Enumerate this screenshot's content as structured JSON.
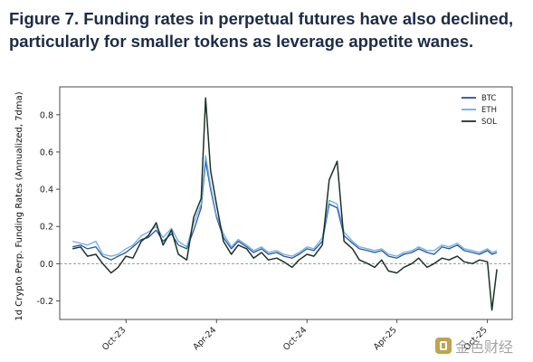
{
  "title": "Figure 7. Funding rates in perpetual futures have also declined, particularly for smaller tokens as leverage appetite wanes.",
  "watermark": {
    "text": "金色财经",
    "icon": "logo-icon"
  },
  "chart_data": {
    "type": "line",
    "title": "Figure 7. Funding rates in perpetual futures have also declined, particularly for smaller tokens as leverage appetite wanes.",
    "xlabel": "",
    "ylabel": "1d Crypto Perp. Funding Rates (Annualized, 7dma)",
    "xticks": [
      "Oct-23",
      "Apr-24",
      "Oct-24",
      "Apr-25",
      "Oct-25"
    ],
    "yticks": [
      -0.2,
      0.0,
      0.2,
      0.4,
      0.6,
      0.8
    ],
    "ylim": [
      -0.3,
      0.95
    ],
    "xlim": [
      "2023-05-20",
      "2025-11-20"
    ],
    "reference_line": {
      "y": 0.0,
      "style": "dashed"
    },
    "legend_position": "top-right",
    "grid": false,
    "series": [
      {
        "name": "BTC",
        "color": "#2a52a3",
        "x": [
          "2023-06-15",
          "2023-07-01",
          "2023-07-15",
          "2023-08-01",
          "2023-08-15",
          "2023-09-01",
          "2023-09-15",
          "2023-10-01",
          "2023-10-15",
          "2023-11-01",
          "2023-11-15",
          "2023-12-01",
          "2023-12-15",
          "2024-01-01",
          "2024-01-15",
          "2024-02-01",
          "2024-02-15",
          "2024-03-01",
          "2024-03-10",
          "2024-03-20",
          "2024-04-01",
          "2024-04-15",
          "2024-05-01",
          "2024-05-15",
          "2024-06-01",
          "2024-06-15",
          "2024-07-01",
          "2024-07-15",
          "2024-08-01",
          "2024-08-15",
          "2024-09-01",
          "2024-09-15",
          "2024-10-01",
          "2024-10-15",
          "2024-11-01",
          "2024-11-15",
          "2024-12-01",
          "2024-12-15",
          "2025-01-01",
          "2025-01-15",
          "2025-02-01",
          "2025-02-15",
          "2025-03-01",
          "2025-03-15",
          "2025-04-01",
          "2025-04-15",
          "2025-05-01",
          "2025-05-15",
          "2025-06-01",
          "2025-06-15",
          "2025-07-01",
          "2025-07-15",
          "2025-08-01",
          "2025-08-15",
          "2025-09-01",
          "2025-09-15",
          "2025-10-01",
          "2025-10-10",
          "2025-10-20"
        ],
        "values": [
          0.09,
          0.1,
          0.08,
          0.09,
          0.04,
          0.02,
          0.04,
          0.06,
          0.09,
          0.13,
          0.14,
          0.18,
          0.12,
          0.16,
          0.1,
          0.08,
          0.18,
          0.3,
          0.55,
          0.4,
          0.25,
          0.14,
          0.08,
          0.12,
          0.09,
          0.06,
          0.08,
          0.05,
          0.06,
          0.04,
          0.03,
          0.05,
          0.08,
          0.07,
          0.12,
          0.32,
          0.3,
          0.15,
          0.11,
          0.08,
          0.07,
          0.06,
          0.07,
          0.04,
          0.03,
          0.05,
          0.06,
          0.08,
          0.06,
          0.05,
          0.09,
          0.08,
          0.1,
          0.07,
          0.06,
          0.05,
          0.07,
          0.05,
          0.06
        ]
      },
      {
        "name": "ETH",
        "color": "#6aaee8",
        "x": [
          "2023-06-15",
          "2023-07-01",
          "2023-07-15",
          "2023-08-01",
          "2023-08-15",
          "2023-09-01",
          "2023-09-15",
          "2023-10-01",
          "2023-10-15",
          "2023-11-01",
          "2023-11-15",
          "2023-12-01",
          "2023-12-15",
          "2024-01-01",
          "2024-01-15",
          "2024-02-01",
          "2024-02-15",
          "2024-03-01",
          "2024-03-10",
          "2024-03-20",
          "2024-04-01",
          "2024-04-15",
          "2024-05-01",
          "2024-05-15",
          "2024-06-01",
          "2024-06-15",
          "2024-07-01",
          "2024-07-15",
          "2024-08-01",
          "2024-08-15",
          "2024-09-01",
          "2024-09-15",
          "2024-10-01",
          "2024-10-15",
          "2024-11-01",
          "2024-11-15",
          "2024-12-01",
          "2024-12-15",
          "2025-01-01",
          "2025-01-15",
          "2025-02-01",
          "2025-02-15",
          "2025-03-01",
          "2025-03-15",
          "2025-04-01",
          "2025-04-15",
          "2025-05-01",
          "2025-05-15",
          "2025-06-01",
          "2025-06-15",
          "2025-07-01",
          "2025-07-15",
          "2025-08-01",
          "2025-08-15",
          "2025-09-01",
          "2025-09-15",
          "2025-10-01",
          "2025-10-10",
          "2025-10-20"
        ],
        "values": [
          0.12,
          0.11,
          0.1,
          0.12,
          0.05,
          0.04,
          0.05,
          0.08,
          0.1,
          0.15,
          0.17,
          0.2,
          0.14,
          0.19,
          0.12,
          0.09,
          0.22,
          0.32,
          0.58,
          0.42,
          0.26,
          0.16,
          0.09,
          0.13,
          0.1,
          0.07,
          0.09,
          0.06,
          0.07,
          0.05,
          0.04,
          0.06,
          0.09,
          0.08,
          0.14,
          0.34,
          0.32,
          0.17,
          0.12,
          0.09,
          0.08,
          0.07,
          0.08,
          0.05,
          0.04,
          0.06,
          0.07,
          0.09,
          0.07,
          0.07,
          0.1,
          0.09,
          0.11,
          0.08,
          0.07,
          0.06,
          0.08,
          0.06,
          0.07
        ]
      },
      {
        "name": "SOL",
        "color": "#1c3326",
        "x": [
          "2023-06-15",
          "2023-07-01",
          "2023-07-15",
          "2023-08-01",
          "2023-08-15",
          "2023-09-01",
          "2023-09-15",
          "2023-10-01",
          "2023-10-15",
          "2023-11-01",
          "2023-11-15",
          "2023-12-01",
          "2023-12-15",
          "2024-01-01",
          "2024-01-15",
          "2024-02-01",
          "2024-02-15",
          "2024-03-01",
          "2024-03-10",
          "2024-03-20",
          "2024-04-01",
          "2024-04-15",
          "2024-05-01",
          "2024-05-15",
          "2024-06-01",
          "2024-06-15",
          "2024-07-01",
          "2024-07-15",
          "2024-08-01",
          "2024-08-15",
          "2024-09-01",
          "2024-09-15",
          "2024-10-01",
          "2024-10-15",
          "2024-11-01",
          "2024-11-15",
          "2024-12-01",
          "2024-12-15",
          "2025-01-01",
          "2025-01-15",
          "2025-02-01",
          "2025-02-15",
          "2025-03-01",
          "2025-03-15",
          "2025-04-01",
          "2025-04-15",
          "2025-05-01",
          "2025-05-15",
          "2025-06-01",
          "2025-06-15",
          "2025-07-01",
          "2025-07-15",
          "2025-08-01",
          "2025-08-15",
          "2025-09-01",
          "2025-09-15",
          "2025-10-01",
          "2025-10-10",
          "2025-10-20"
        ],
        "values": [
          0.08,
          0.09,
          0.04,
          0.05,
          0.0,
          -0.05,
          -0.02,
          0.04,
          0.03,
          0.12,
          0.15,
          0.22,
          0.1,
          0.18,
          0.05,
          0.02,
          0.25,
          0.35,
          0.89,
          0.5,
          0.32,
          0.12,
          0.05,
          0.1,
          0.08,
          0.03,
          0.06,
          0.02,
          0.03,
          0.01,
          -0.02,
          0.02,
          0.05,
          0.04,
          0.1,
          0.45,
          0.55,
          0.12,
          0.08,
          0.02,
          0.0,
          -0.02,
          0.02,
          -0.04,
          -0.05,
          -0.02,
          0.0,
          0.03,
          -0.02,
          0.0,
          0.03,
          0.02,
          0.04,
          0.01,
          0.0,
          0.02,
          0.01,
          -0.25,
          -0.03
        ]
      }
    ]
  }
}
